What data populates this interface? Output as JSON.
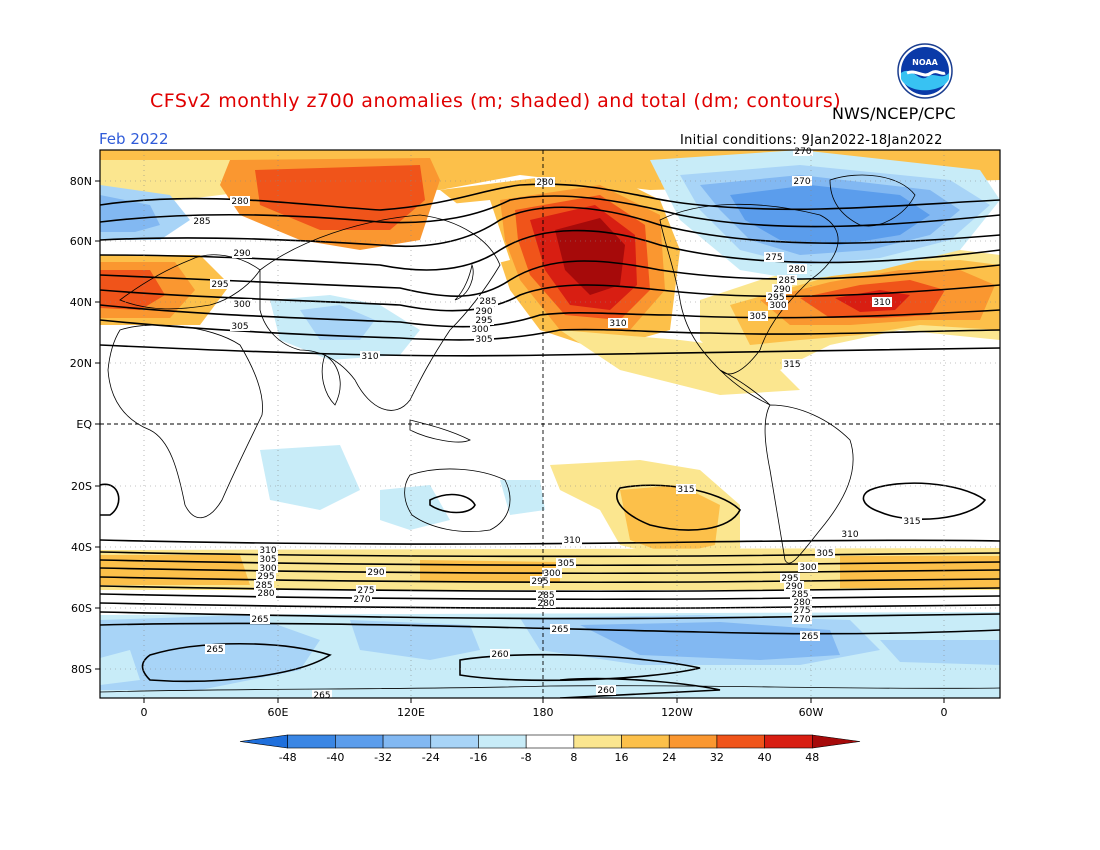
{
  "header": {
    "title": "CFSv2 monthly z700 anomalies (m; shaded) and total (dm; contours)",
    "agency": "NWS/NCEP/CPC",
    "period": "Feb 2022",
    "initial_conditions": "Initial conditions: 9Jan2022-18Jan2022"
  },
  "axes": {
    "lat_labels": [
      "80N",
      "60N",
      "40N",
      "20N",
      "EQ",
      "20S",
      "40S",
      "60S",
      "80S"
    ],
    "lon_labels": [
      "0",
      "60E",
      "120E",
      "180",
      "120W",
      "60W",
      "0"
    ]
  },
  "colorbar": {
    "ticks": [
      "-48",
      "-40",
      "-32",
      "-24",
      "-16",
      "-8",
      "8",
      "16",
      "24",
      "32",
      "40",
      "48"
    ],
    "colors": [
      "#1e6fdc",
      "#3a86e4",
      "#5b9dec",
      "#82b8f2",
      "#a8d4f7",
      "#c8ecf8",
      "#ffffff",
      "#fbe68f",
      "#fcc04a",
      "#fa9730",
      "#f0541a",
      "#d81e12",
      "#a60a0a"
    ]
  },
  "contour_labels": [
    "270",
    "275",
    "280",
    "285",
    "290",
    "295",
    "300",
    "305",
    "310",
    "315",
    "265",
    "260"
  ],
  "icons": {
    "logo": "noaa-logo-icon"
  }
}
